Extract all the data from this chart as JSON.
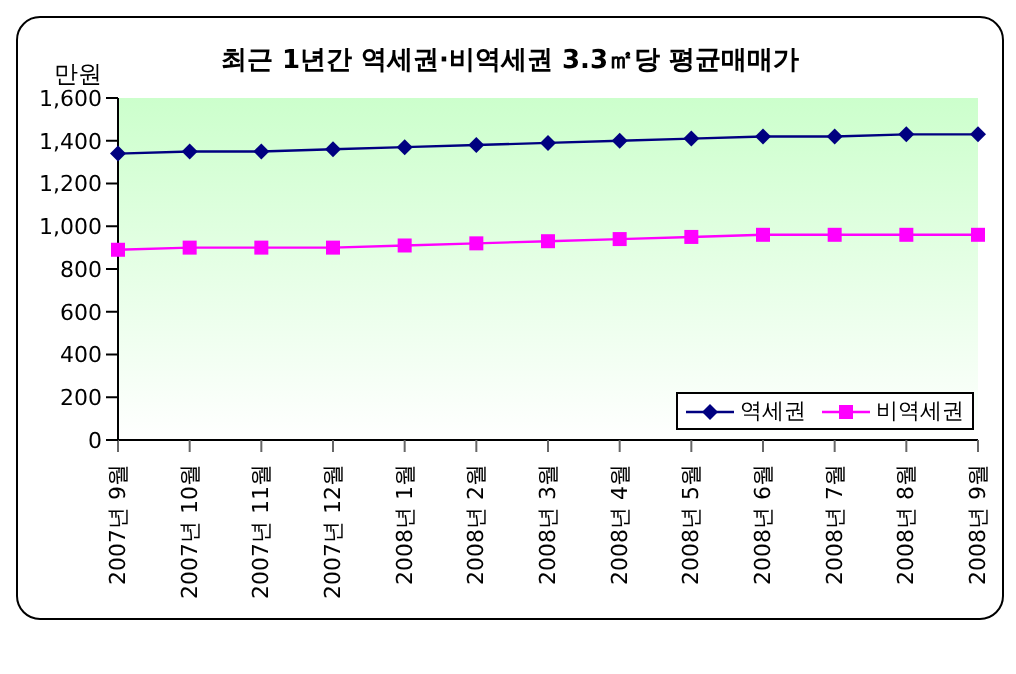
{
  "chart_data": {
    "type": "line",
    "title": "최근 1년간 역세권·비역세권 3.3㎡당 평균매매가",
    "ylabel": "만원",
    "categories": [
      "2007년 9월",
      "2007년 10월",
      "2007년 11월",
      "2007년 12월",
      "2008년 1월",
      "2008년 2월",
      "2008년 3월",
      "2008년 4월",
      "2008년 5월",
      "2008년 6월",
      "2008년 7월",
      "2008년 8월",
      "2008년 9월"
    ],
    "series": [
      {
        "name": "역세권",
        "color": "#000080",
        "marker": "diamond",
        "values": [
          1340,
          1350,
          1350,
          1360,
          1370,
          1380,
          1390,
          1400,
          1410,
          1420,
          1420,
          1430,
          1430
        ]
      },
      {
        "name": "비역세권",
        "color": "#ff00ff",
        "marker": "square",
        "values": [
          890,
          900,
          900,
          900,
          910,
          920,
          930,
          940,
          950,
          960,
          960,
          960,
          960
        ]
      }
    ],
    "ylim": [
      0,
      1600
    ],
    "yticks": [
      0,
      200,
      400,
      600,
      800,
      {
        "value": 1000,
        "label": "1,000"
      },
      {
        "value": 1200,
        "label": "1,200"
      },
      {
        "value": 1400,
        "label": "1,400"
      },
      {
        "value": 1600,
        "label": "1,600"
      }
    ],
    "grid": false,
    "legend": "bottom right"
  }
}
